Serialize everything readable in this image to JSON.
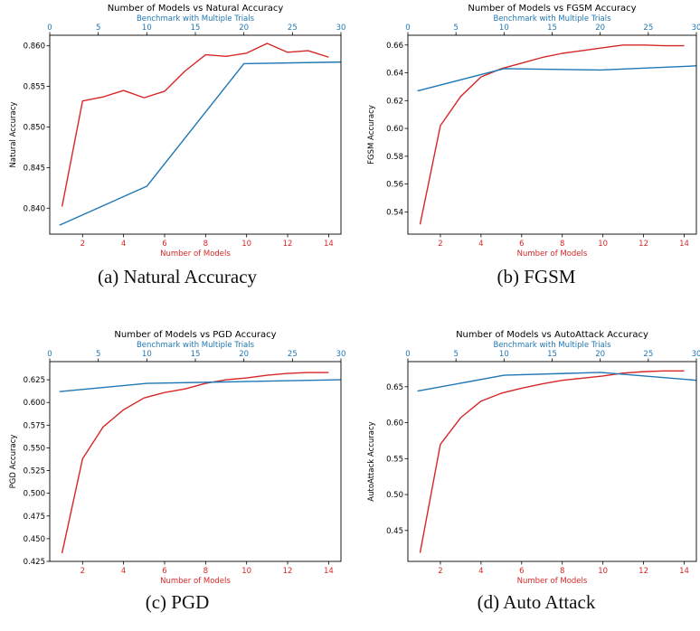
{
  "figure": {
    "colors": {
      "red": "#d62728",
      "blue": "#1f77b4",
      "axis": "#000000"
    }
  },
  "chart_data": [
    {
      "type": "line",
      "title": "Number of Models vs Natural Accuracy",
      "xlabel": "Number of Models",
      "x2label": "Benchmark with Multiple Trials",
      "ylabel": "Natural Accuracy",
      "caption": "(a)  Natural Accuracy",
      "xlim": [
        0.4,
        14.6
      ],
      "x2lim": [
        0,
        30
      ],
      "ylim": [
        0.8368,
        0.8613
      ],
      "xticks": [
        2,
        4,
        6,
        8,
        10,
        12,
        14
      ],
      "x2ticks": [
        0,
        5,
        10,
        15,
        20,
        25,
        30
      ],
      "yticks": [
        0.84,
        0.845,
        0.85,
        0.855,
        0.86
      ],
      "ytick_labels": [
        "0.840",
        "0.845",
        "0.850",
        "0.855",
        "0.860"
      ],
      "grid": false,
      "series": [
        {
          "axis": "bottom",
          "color": "#d62728",
          "x": [
            1,
            2,
            3,
            4,
            5,
            6,
            7,
            8,
            9,
            10,
            11,
            12,
            13,
            14
          ],
          "y": [
            0.8402,
            0.8532,
            0.8537,
            0.8545,
            0.8536,
            0.8544,
            0.8569,
            0.8589,
            0.8587,
            0.8591,
            0.8603,
            0.8592,
            0.8594,
            0.8586
          ]
        },
        {
          "axis": "top",
          "color": "#1f77b4",
          "x": [
            1,
            10,
            20,
            30
          ],
          "y": [
            0.8379,
            0.8427,
            0.8578,
            0.858
          ]
        }
      ]
    },
    {
      "type": "line",
      "title": "Number of Models vs FGSM Accuracy",
      "xlabel": "Number of Models",
      "x2label": "Benchmark with Multiple Trials",
      "ylabel": "FGSM Accuracy",
      "caption": "(b)  FGSM",
      "xlim": [
        0.4,
        14.6
      ],
      "x2lim": [
        0,
        30
      ],
      "ylim": [
        0.524,
        0.667
      ],
      "xticks": [
        2,
        4,
        6,
        8,
        10,
        12,
        14
      ],
      "x2ticks": [
        0,
        5,
        10,
        15,
        20,
        25,
        30
      ],
      "yticks": [
        0.54,
        0.56,
        0.58,
        0.6,
        0.62,
        0.64,
        0.66
      ],
      "ytick_labels": [
        "0.54",
        "0.56",
        "0.58",
        "0.60",
        "0.62",
        "0.64",
        "0.66"
      ],
      "grid": false,
      "series": [
        {
          "axis": "bottom",
          "color": "#d62728",
          "x": [
            1,
            2,
            3,
            4,
            5,
            6,
            7,
            8,
            9,
            10,
            11,
            12,
            13,
            14
          ],
          "y": [
            0.531,
            0.602,
            0.623,
            0.637,
            0.643,
            0.647,
            0.651,
            0.654,
            0.656,
            0.658,
            0.66,
            0.66,
            0.6595,
            0.6595
          ]
        },
        {
          "axis": "top",
          "color": "#1f77b4",
          "x": [
            1,
            10,
            20,
            30
          ],
          "y": [
            0.627,
            0.643,
            0.642,
            0.645
          ]
        }
      ]
    },
    {
      "type": "line",
      "title": "Number of Models vs PGD Accuracy",
      "xlabel": "Number of Models",
      "x2label": "Benchmark with Multiple Trials",
      "ylabel": "PGD Accuracy",
      "caption": "(c)  PGD",
      "xlim": [
        0.4,
        14.6
      ],
      "x2lim": [
        0,
        30
      ],
      "ylim": [
        0.425,
        0.645
      ],
      "xticks": [
        2,
        4,
        6,
        8,
        10,
        12,
        14
      ],
      "x2ticks": [
        0,
        5,
        10,
        15,
        20,
        25,
        30
      ],
      "yticks": [
        0.425,
        0.45,
        0.475,
        0.5,
        0.525,
        0.55,
        0.575,
        0.6,
        0.625
      ],
      "ytick_labels": [
        "0.425",
        "0.450",
        "0.475",
        "0.500",
        "0.525",
        "0.550",
        "0.575",
        "0.600",
        "0.625"
      ],
      "grid": false,
      "series": [
        {
          "axis": "bottom",
          "color": "#d62728",
          "x": [
            1,
            2,
            3,
            4,
            5,
            6,
            7,
            8,
            9,
            10,
            11,
            12,
            13,
            14
          ],
          "y": [
            0.434,
            0.538,
            0.573,
            0.592,
            0.605,
            0.611,
            0.615,
            0.621,
            0.625,
            0.627,
            0.63,
            0.632,
            0.633,
            0.633
          ]
        },
        {
          "axis": "top",
          "color": "#1f77b4",
          "x": [
            1,
            10,
            20,
            30
          ],
          "y": [
            0.612,
            0.621,
            0.623,
            0.625
          ]
        }
      ]
    },
    {
      "type": "line",
      "title": "Number of Models vs AutoAttack Accuracy",
      "xlabel": "Number of Models",
      "x2label": "Benchmark with Multiple Trials",
      "ylabel": "AutoAttack Accuracy",
      "caption": "(d)  Auto Attack",
      "xlim": [
        0.4,
        14.6
      ],
      "x2lim": [
        0,
        30
      ],
      "ylim": [
        0.407,
        0.685
      ],
      "xticks": [
        2,
        4,
        6,
        8,
        10,
        12,
        14
      ],
      "x2ticks": [
        0,
        5,
        10,
        15,
        20,
        25,
        30
      ],
      "yticks": [
        0.45,
        0.5,
        0.55,
        0.6,
        0.65
      ],
      "ytick_labels": [
        "0.45",
        "0.50",
        "0.55",
        "0.60",
        "0.65"
      ],
      "grid": false,
      "series": [
        {
          "axis": "bottom",
          "color": "#d62728",
          "x": [
            1,
            2,
            3,
            4,
            5,
            6,
            7,
            8,
            9,
            10,
            11,
            12,
            13,
            14
          ],
          "y": [
            0.419,
            0.57,
            0.607,
            0.63,
            0.641,
            0.648,
            0.654,
            0.659,
            0.662,
            0.665,
            0.669,
            0.671,
            0.672,
            0.672
          ]
        },
        {
          "axis": "top",
          "color": "#1f77b4",
          "x": [
            1,
            10,
            20,
            30
          ],
          "y": [
            0.644,
            0.666,
            0.67,
            0.659
          ]
        }
      ]
    }
  ]
}
